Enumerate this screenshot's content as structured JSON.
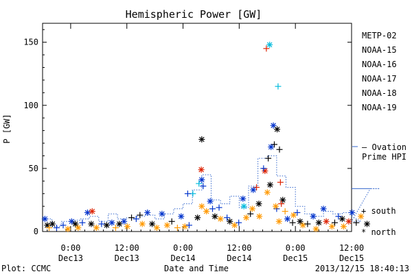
{
  "chart_data": {
    "type": "scatter",
    "title": "Hemispheric Power [GW]",
    "ylabel": "P [GW]",
    "xlabel": "Date and Time",
    "ylim": [
      0,
      165
    ],
    "xlim_hours": [
      -6,
      60
    ],
    "yticks": [
      0,
      50,
      100,
      150
    ],
    "xticks": [
      {
        "h": 0,
        "top": "0:00",
        "bottom": "Dec13"
      },
      {
        "h": 12,
        "top": "12:00",
        "bottom": "Dec13"
      },
      {
        "h": 24,
        "top": "0:00",
        "bottom": "Dec14"
      },
      {
        "h": 36,
        "top": "12:00",
        "bottom": "Dec14"
      },
      {
        "h": 48,
        "top": "0:00",
        "bottom": "Dec15"
      },
      {
        "h": 60,
        "top": "12:00",
        "bottom": "Dec15"
      }
    ],
    "legend": [
      {
        "name": "METP-02",
        "color": "#000000"
      },
      {
        "name": "NOAA-15",
        "color": "#0033cc"
      },
      {
        "name": "NOAA-16",
        "color": "#00bbdd"
      },
      {
        "name": "NOAA-17",
        "color": "#33cc66"
      },
      {
        "name": "NOAA-18",
        "color": "#ff9900"
      },
      {
        "name": "NOAA-19",
        "color": "#dd2200"
      }
    ],
    "ovation_label_1": "— Ovation",
    "ovation_label_2": "Prime HPI",
    "ovation_color": "#3366cc",
    "marker_south": "+ south",
    "marker_north": "* north",
    "ovation": [
      [
        -6,
        10
      ],
      [
        -4,
        4
      ],
      [
        -2,
        8
      ],
      [
        0,
        9
      ],
      [
        2,
        10
      ],
      [
        4,
        12
      ],
      [
        6,
        8
      ],
      [
        8,
        14
      ],
      [
        10,
        10
      ],
      [
        12,
        11
      ],
      [
        14,
        12
      ],
      [
        16,
        13
      ],
      [
        18,
        10
      ],
      [
        20,
        14
      ],
      [
        22,
        18
      ],
      [
        24,
        22
      ],
      [
        26,
        33
      ],
      [
        28,
        45
      ],
      [
        30,
        25
      ],
      [
        32,
        22
      ],
      [
        34,
        28
      ],
      [
        36,
        19
      ],
      [
        38,
        36
      ],
      [
        40,
        58
      ],
      [
        42,
        60
      ],
      [
        44,
        44
      ],
      [
        46,
        35
      ],
      [
        48,
        20
      ],
      [
        50,
        14
      ],
      [
        52,
        12
      ],
      [
        54,
        16
      ],
      [
        56,
        14
      ],
      [
        58,
        15
      ],
      [
        60,
        12
      ],
      [
        62,
        8
      ],
      [
        64,
        34
      ],
      [
        66,
        34
      ]
    ],
    "points": [
      {
        "s": 2,
        "h": 42.5,
        "p": 148,
        "m": "*"
      },
      {
        "s": 5,
        "h": 41.8,
        "p": 145,
        "m": "+"
      },
      {
        "s": 2,
        "h": 44.3,
        "p": 115,
        "m": "+"
      },
      {
        "s": 1,
        "h": 43.3,
        "p": 84,
        "m": "*"
      },
      {
        "s": 0,
        "h": 44.1,
        "p": 81,
        "m": "*"
      },
      {
        "s": 0,
        "h": 43.5,
        "p": 69,
        "m": "+"
      },
      {
        "s": 0,
        "h": 44.6,
        "p": 65,
        "m": "+"
      },
      {
        "s": 1,
        "h": 42.8,
        "p": 67,
        "m": "*"
      },
      {
        "s": 0,
        "h": 42.2,
        "p": 58,
        "m": "+"
      },
      {
        "s": 5,
        "h": 41.5,
        "p": 48,
        "m": "*"
      },
      {
        "s": 1,
        "h": 41.2,
        "p": 50,
        "m": "+"
      },
      {
        "s": 0,
        "h": 42.6,
        "p": 37,
        "m": "*"
      },
      {
        "s": 4,
        "h": 42.0,
        "p": 31,
        "m": "*"
      },
      {
        "s": 5,
        "h": 44.8,
        "p": 39,
        "m": "+"
      },
      {
        "s": 5,
        "h": 39.7,
        "p": 35,
        "m": "+"
      },
      {
        "s": 1,
        "h": 39.0,
        "p": 33,
        "m": "*"
      },
      {
        "s": 1,
        "h": 36.8,
        "p": 26,
        "m": "*"
      },
      {
        "s": 0,
        "h": 28.0,
        "p": 73,
        "m": "*"
      },
      {
        "s": 5,
        "h": 27.9,
        "p": 49,
        "m": "*"
      },
      {
        "s": 1,
        "h": 28.0,
        "p": 41,
        "m": "*"
      },
      {
        "s": 2,
        "h": 27.4,
        "p": 38,
        "m": "+"
      },
      {
        "s": 1,
        "h": 28.3,
        "p": 36,
        "m": "+"
      },
      {
        "s": 2,
        "h": 26.1,
        "p": 30,
        "m": "+"
      },
      {
        "s": 1,
        "h": 25.0,
        "p": 30,
        "m": "+"
      },
      {
        "s": 1,
        "h": 29.8,
        "p": 24,
        "m": "*"
      },
      {
        "s": 4,
        "h": 28.0,
        "p": 20,
        "m": "*"
      },
      {
        "s": 0,
        "h": 27.1,
        "p": 11,
        "m": "*"
      },
      {
        "s": 1,
        "h": 30.3,
        "p": 18,
        "m": "+"
      },
      {
        "s": 0,
        "h": 30.8,
        "p": 12,
        "m": "*"
      },
      {
        "s": 4,
        "h": 29.0,
        "p": 16,
        "m": "*"
      },
      {
        "s": 1,
        "h": 31.7,
        "p": 19,
        "m": "+"
      },
      {
        "s": 4,
        "h": 32.0,
        "p": 10,
        "m": "*"
      },
      {
        "s": 1,
        "h": 33.4,
        "p": 11,
        "m": "+"
      },
      {
        "s": 0,
        "h": 34.0,
        "p": 8,
        "m": "*"
      },
      {
        "s": 4,
        "h": 35.0,
        "p": 5,
        "m": "*"
      },
      {
        "s": 1,
        "h": 35.9,
        "p": 7,
        "m": "+"
      },
      {
        "s": 2,
        "h": 37.0,
        "p": 20,
        "m": "*"
      },
      {
        "s": 4,
        "h": 37.5,
        "p": 11,
        "m": "*"
      },
      {
        "s": 0,
        "h": 38.4,
        "p": 14,
        "m": "+"
      },
      {
        "s": 4,
        "h": 38.8,
        "p": 18,
        "m": "*"
      },
      {
        "s": 0,
        "h": 40.2,
        "p": 22,
        "m": "*"
      },
      {
        "s": 4,
        "h": 40.3,
        "p": 12,
        "m": "*"
      },
      {
        "s": 1,
        "h": 44.0,
        "p": 18,
        "m": "+"
      },
      {
        "s": 4,
        "h": 43.8,
        "p": 20,
        "m": "*"
      },
      {
        "s": 4,
        "h": 44.5,
        "p": 8,
        "m": "*"
      },
      {
        "s": 0,
        "h": 45.3,
        "p": 25,
        "m": "*"
      },
      {
        "s": 5,
        "h": 45.0,
        "p": 22,
        "m": "+"
      },
      {
        "s": 4,
        "h": 45.8,
        "p": 16,
        "m": "+"
      },
      {
        "s": 1,
        "h": 46.3,
        "p": 10,
        "m": "*"
      },
      {
        "s": 0,
        "h": 47.4,
        "p": 7,
        "m": "+"
      },
      {
        "s": 4,
        "h": 47.6,
        "p": 13,
        "m": "*"
      },
      {
        "s": 1,
        "h": 48.4,
        "p": 15,
        "m": "+"
      },
      {
        "s": 0,
        "h": 49.0,
        "p": 8,
        "m": "*"
      },
      {
        "s": 4,
        "h": 49.6,
        "p": 5,
        "m": "*"
      },
      {
        "s": 0,
        "h": 50.6,
        "p": 6,
        "m": "+"
      },
      {
        "s": 1,
        "h": 51.8,
        "p": 12,
        "m": "*"
      },
      {
        "s": 4,
        "h": 52.4,
        "p": 2,
        "m": "*"
      },
      {
        "s": 0,
        "h": 53.0,
        "p": 7,
        "m": "*"
      },
      {
        "s": 1,
        "h": 54.0,
        "p": 18,
        "m": "*"
      },
      {
        "s": 5,
        "h": 54.6,
        "p": 8,
        "m": "*"
      },
      {
        "s": 4,
        "h": 55.8,
        "p": 4,
        "m": "*"
      },
      {
        "s": 0,
        "h": 56.4,
        "p": 7,
        "m": "+"
      },
      {
        "s": 1,
        "h": 57.2,
        "p": 12,
        "m": "+"
      },
      {
        "s": 0,
        "h": 58.0,
        "p": 10,
        "m": "*"
      },
      {
        "s": 4,
        "h": 58.3,
        "p": 4,
        "m": "*"
      },
      {
        "s": 5,
        "h": 59.4,
        "p": 8,
        "m": "*"
      },
      {
        "s": 1,
        "h": 60.1,
        "p": 15,
        "m": "*"
      },
      {
        "s": 0,
        "h": 61.0,
        "p": 7,
        "m": "+"
      },
      {
        "s": 4,
        "h": 62.0,
        "p": 12,
        "m": "*"
      },
      {
        "s": 0,
        "h": 63.3,
        "p": 6,
        "m": "*"
      },
      {
        "s": 1,
        "h": -5.5,
        "p": 10,
        "m": "*"
      },
      {
        "s": 0,
        "h": -5.0,
        "p": 5,
        "m": "*"
      },
      {
        "s": 4,
        "h": -4.6,
        "p": 3,
        "m": "+"
      },
      {
        "s": 0,
        "h": -3.9,
        "p": 6,
        "m": "*"
      },
      {
        "s": 1,
        "h": -3.0,
        "p": 3,
        "m": "+"
      },
      {
        "s": 1,
        "h": -1.6,
        "p": 5,
        "m": "+"
      },
      {
        "s": 4,
        "h": -0.6,
        "p": 2,
        "m": "*"
      },
      {
        "s": 1,
        "h": 0.2,
        "p": 8,
        "m": "*"
      },
      {
        "s": 0,
        "h": 1.0,
        "p": 6,
        "m": "*"
      },
      {
        "s": 4,
        "h": 1.6,
        "p": 3,
        "m": "*"
      },
      {
        "s": 1,
        "h": 2.5,
        "p": 7,
        "m": "+"
      },
      {
        "s": 1,
        "h": 3.6,
        "p": 15,
        "m": "*"
      },
      {
        "s": 5,
        "h": 4.6,
        "p": 16,
        "m": "*"
      },
      {
        "s": 0,
        "h": 4.4,
        "p": 6,
        "m": "*"
      },
      {
        "s": 4,
        "h": 5.5,
        "p": 3,
        "m": "*"
      },
      {
        "s": 1,
        "h": 6.6,
        "p": 6,
        "m": "+"
      },
      {
        "s": 0,
        "h": 7.7,
        "p": 5,
        "m": "*"
      },
      {
        "s": 1,
        "h": 8.8,
        "p": 7,
        "m": "*"
      },
      {
        "s": 4,
        "h": 9.6,
        "p": 3,
        "m": "+"
      },
      {
        "s": 0,
        "h": 10.4,
        "p": 6,
        "m": "*"
      },
      {
        "s": 1,
        "h": 11.4,
        "p": 8,
        "m": "*"
      },
      {
        "s": 4,
        "h": 12.1,
        "p": 4,
        "m": "*"
      },
      {
        "s": 0,
        "h": 13.0,
        "p": 11,
        "m": "+"
      },
      {
        "s": 1,
        "h": 14.0,
        "p": 10,
        "m": "+"
      },
      {
        "s": 0,
        "h": 14.8,
        "p": 13,
        "m": "+"
      },
      {
        "s": 4,
        "h": 15.3,
        "p": 6,
        "m": "*"
      },
      {
        "s": 1,
        "h": 16.4,
        "p": 15,
        "m": "*"
      },
      {
        "s": 0,
        "h": 17.4,
        "p": 6,
        "m": "*"
      },
      {
        "s": 4,
        "h": 18.4,
        "p": 3,
        "m": "*"
      },
      {
        "s": 1,
        "h": 19.5,
        "p": 14,
        "m": "*"
      },
      {
        "s": 4,
        "h": 20.6,
        "p": 5,
        "m": "*"
      },
      {
        "s": 0,
        "h": 21.6,
        "p": 8,
        "m": "+"
      },
      {
        "s": 4,
        "h": 22.8,
        "p": 3,
        "m": "+"
      },
      {
        "s": 1,
        "h": 23.6,
        "p": 12,
        "m": "*"
      },
      {
        "s": 4,
        "h": 24.4,
        "p": 4,
        "m": "*"
      },
      {
        "s": 1,
        "h": 25.3,
        "p": 5,
        "m": "+"
      }
    ]
  },
  "footer": {
    "left": "Plot: CCMC",
    "center": "Date and Time",
    "right": "2013/12/15 18:40:13"
  }
}
